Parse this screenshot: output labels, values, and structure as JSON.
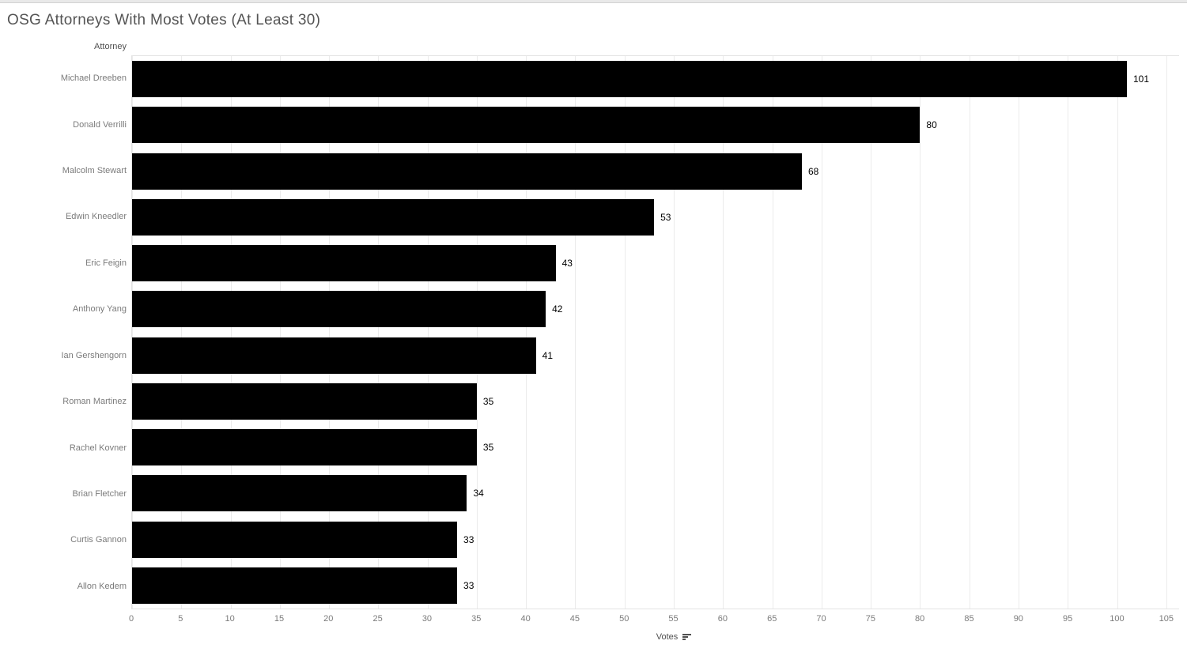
{
  "title": "OSG Attorneys With Most Votes (At Least 30)",
  "chart_data": {
    "type": "bar",
    "orientation": "horizontal",
    "title": "OSG Attorneys With Most Votes (At Least 30)",
    "category_axis_title": "Attorney",
    "value_axis_title": "Votes",
    "sort_indicator": "descending",
    "categories": [
      "Michael Dreeben",
      "Donald Verrilli",
      "Malcolm Stewart",
      "Edwin Kneedler",
      "Eric Feigin",
      "Anthony Yang",
      "Ian Gershengorn",
      "Roman Martinez",
      "Rachel Kovner",
      "Brian Fletcher",
      "Curtis Gannon",
      "Allon Kedem"
    ],
    "values": [
      101,
      80,
      68,
      53,
      43,
      42,
      41,
      35,
      35,
      34,
      33,
      33
    ],
    "value_labels_shown": true,
    "xlim": [
      0,
      106.3
    ],
    "xticks": [
      0,
      5,
      10,
      15,
      20,
      25,
      30,
      35,
      40,
      45,
      50,
      55,
      60,
      65,
      70,
      75,
      80,
      85,
      90,
      95,
      100,
      105
    ],
    "grid": true,
    "legend": "none",
    "bar_color": "#000000"
  },
  "colors": {
    "bar": "#000000",
    "value_label": "#000000",
    "title_text": "#545454",
    "axis_header_text": "#4f4f4f",
    "category_label_text": "#7b7b7b",
    "tick_label_text": "#7b7b7b",
    "gridline": "#ebebeb",
    "axis_line": "#e3e3e3",
    "top_strip": "#e9e9e9"
  }
}
